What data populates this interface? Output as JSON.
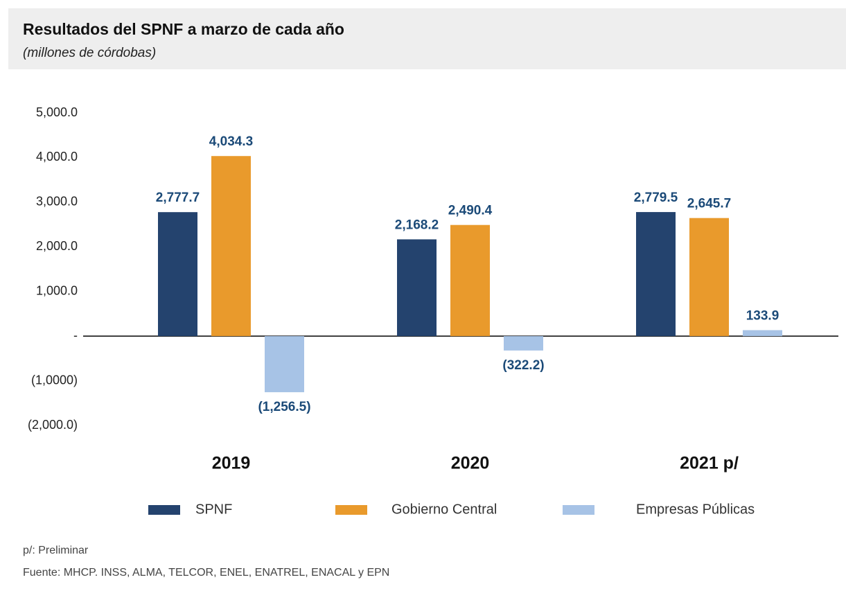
{
  "chart_data": {
    "type": "bar",
    "title": "Resultados del SPNF a marzo de cada año",
    "subtitle": "(millones de córdobas)",
    "categories": [
      "2019",
      "2020",
      "2021 p/"
    ],
    "series": [
      {
        "name": "SPNF",
        "color": "#24436e",
        "values": [
          2777.7,
          2168.2,
          2779.5
        ],
        "value_labels": [
          "2,777.7",
          "2,168.2",
          "2,779.5"
        ]
      },
      {
        "name": "Gobierno Central",
        "color": "#e99a2c",
        "values": [
          4034.3,
          2490.4,
          2645.7
        ],
        "value_labels": [
          "4,034.3",
          "2,490.4",
          "2,645.7"
        ]
      },
      {
        "name": "Empresas Públicas",
        "color": "#a7c3e6",
        "values": [
          -1256.5,
          -322.2,
          133.9
        ],
        "value_labels": [
          "(1,256.5)",
          "(322.2)",
          "133.9"
        ]
      }
    ],
    "ylim": [
      -2000,
      5000
    ],
    "yticks": [
      {
        "value": -2000,
        "label": "(2,000.0)"
      },
      {
        "value": -1000,
        "label": "(1,0000)"
      },
      {
        "value": 0,
        "label": "-"
      },
      {
        "value": 1000,
        "label": "1,000.0"
      },
      {
        "value": 2000,
        "label": "2,000.0"
      },
      {
        "value": 3000,
        "label": "3,000.0"
      },
      {
        "value": 4000,
        "label": "4,000.0"
      },
      {
        "value": 5000,
        "label": "5,000.0"
      }
    ],
    "legend": "bottom",
    "notes": [
      "p/: Preliminar",
      "Fuente: MHCP. INSS, ALMA, TELCOR, ENEL, ENATREL, ENACAL y EPN"
    ]
  }
}
